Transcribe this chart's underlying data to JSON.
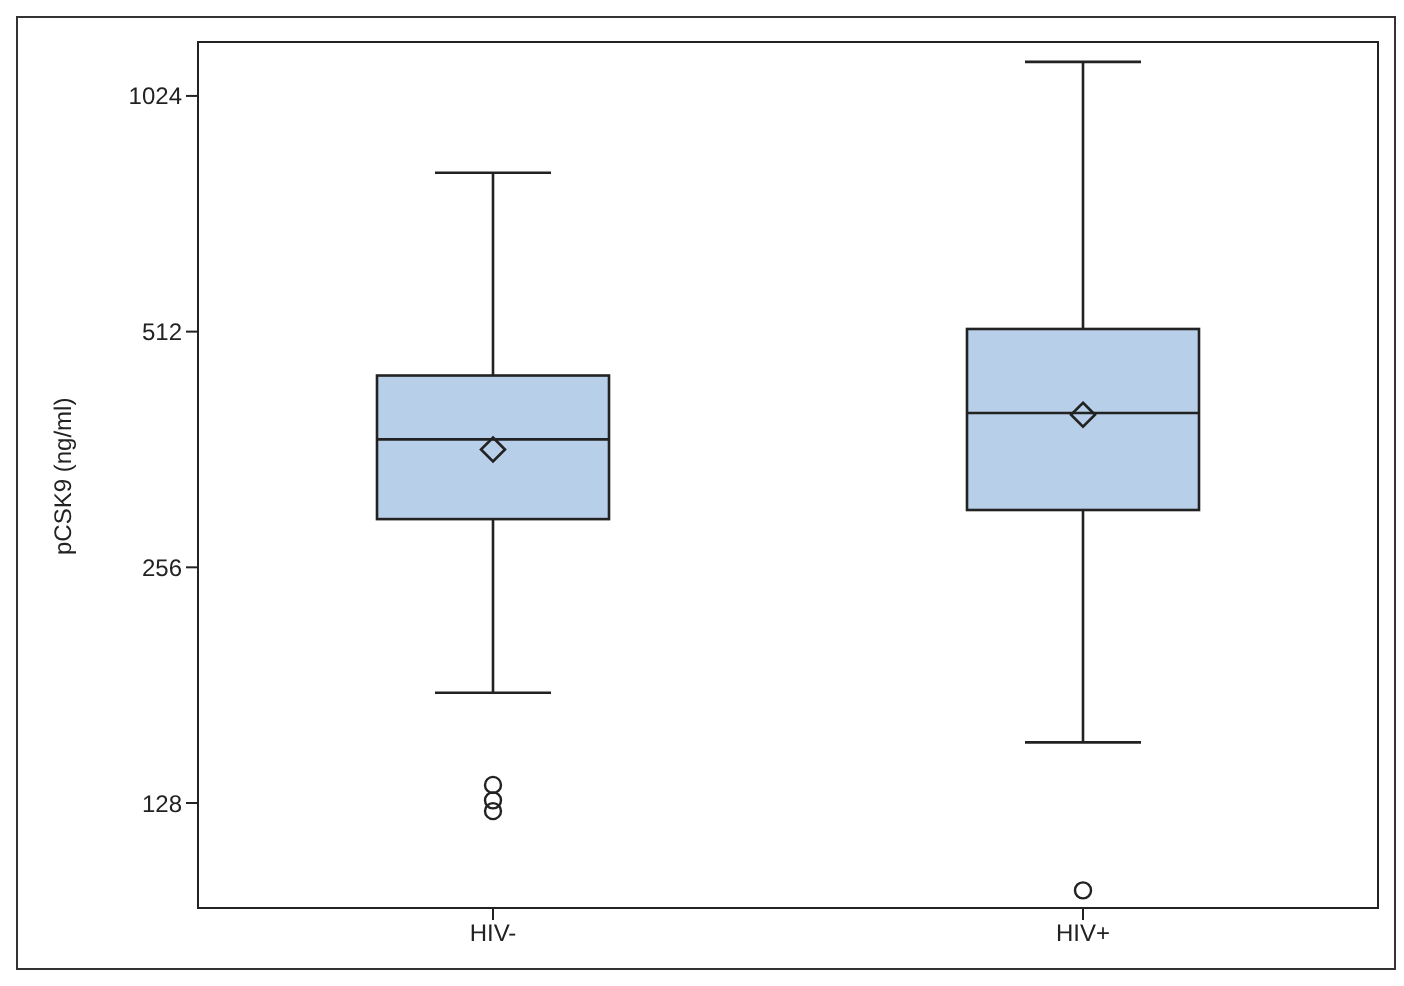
{
  "chart_data": {
    "type": "box",
    "ylabel": "pCSK9 (ng/ml)",
    "categories": [
      "HIV-",
      "HIV+"
    ],
    "log": true,
    "ylim": [
      94,
      1200
    ],
    "yticks": [
      128,
      256,
      512,
      1024
    ],
    "marker": "circle",
    "color": "#b8cfe9",
    "boxes": [
      {
        "low": 177,
        "q1": 295,
        "median": 373,
        "q3": 450,
        "high": 817,
        "mean": 362,
        "outliers": [
          135,
          129,
          125
        ]
      },
      {
        "low": 153,
        "q1": 303,
        "median": 403,
        "q3": 516,
        "high": 1132,
        "mean": 401,
        "outliers": [
          99
        ]
      }
    ]
  }
}
